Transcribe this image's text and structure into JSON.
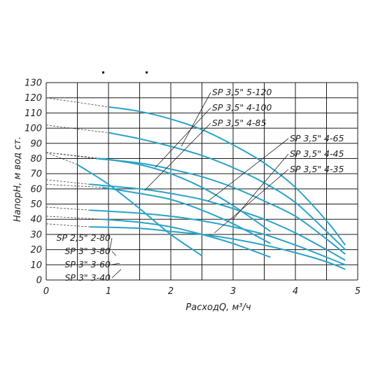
{
  "chart_data": {
    "type": "line",
    "xlabel": "РасходQ, м³/ч",
    "ylabel": "НапорH, м вод ст.",
    "xlim": [
      0,
      5
    ],
    "ylim": [
      0,
      130
    ],
    "xticks": [
      "0",
      "1",
      "2",
      "3",
      "4",
      "5"
    ],
    "yticks": [
      "0",
      "10",
      "20",
      "30",
      "40",
      "50",
      "60",
      "70",
      "80",
      "90",
      "100",
      "110",
      "120",
      "130"
    ],
    "grid": true,
    "series": [
      {
        "name": "SP 3,5\" 5-120",
        "color": "#29a3c8",
        "shutoff": [
          0,
          120
        ],
        "x": [
          1.0,
          1.5,
          2.0,
          2.5,
          3.0,
          3.5,
          4.0,
          4.5,
          4.8
        ],
        "y": [
          114,
          111,
          106,
          99,
          89,
          77,
          61,
          39,
          23
        ],
        "label_anchor": [
          2.17,
          88
        ]
      },
      {
        "name": "SP 3,5\" 4-100",
        "color": "#29a3c8",
        "shutoff": [
          0,
          102
        ],
        "x": [
          1.0,
          1.5,
          2.0,
          2.5,
          3.0,
          3.5,
          4.0,
          4.5,
          4.8
        ],
        "y": [
          97,
          93,
          88,
          82,
          74,
          64,
          51,
          32,
          20
        ],
        "label_anchor": [
          1.75,
          74
        ]
      },
      {
        "name": "SP 3,5\" 4-85",
        "color": "#29a3c8",
        "shutoff": [
          0,
          84
        ],
        "x": [
          0.8,
          1.5,
          2.0,
          2.5,
          3.0,
          3.5,
          4.0,
          4.5,
          4.8
        ],
        "y": [
          80,
          77,
          73,
          68,
          61,
          52,
          42,
          27,
          17
        ],
        "label_anchor": [
          1.58,
          59
        ]
      },
      {
        "name": "SP 3,5\" 4-65",
        "color": "#29a3c8",
        "shutoff": [
          0,
          66
        ],
        "x": [
          0.7,
          1.5,
          2.0,
          2.5,
          3.0,
          3.5,
          4.0,
          4.5,
          4.8
        ],
        "y": [
          63,
          60,
          57,
          53,
          47,
          40,
          31,
          20,
          13
        ],
        "label_anchor": [
          2.6,
          52
        ]
      },
      {
        "name": "SP 3,5\" 4-45",
        "color": "#29a3c8",
        "shutoff": [
          0,
          48
        ],
        "x": [
          0.7,
          1.5,
          2.0,
          2.5,
          3.0,
          3.5,
          4.0,
          4.5,
          4.8
        ],
        "y": [
          46,
          44,
          42,
          39,
          35,
          30,
          23,
          15,
          10
        ],
        "label_anchor": [
          3.0,
          40
        ]
      },
      {
        "name": "SP 3,5\" 4-35",
        "color": "#29a3c8",
        "shutoff": [
          0,
          37
        ],
        "x": [
          0.7,
          1.5,
          2.0,
          2.5,
          3.0,
          3.5,
          4.0,
          4.5,
          4.8
        ],
        "y": [
          35,
          34,
          32,
          30,
          27,
          23,
          18,
          12,
          7
        ],
        "label_anchor": [
          2.7,
          31
        ]
      },
      {
        "name": "SP 2,5\" 2-80",
        "color": "#29a3c8",
        "shutoff": [
          0,
          84
        ],
        "x": [
          0.5,
          1.0,
          1.5,
          2.0,
          2.5
        ],
        "y": [
          76,
          63,
          47,
          30,
          16
        ],
        "label_anchor": [
          1.02,
          20
        ]
      },
      {
        "name": "SP 3\" 3-80",
        "color": "#29a3c8",
        "shutoff": [
          0,
          84
        ],
        "x": [
          0.9,
          1.5,
          2.0,
          2.5,
          3.0,
          3.6
        ],
        "y": [
          80,
          76,
          70,
          61,
          49,
          32
        ],
        "label_anchor": [
          1.12,
          16
        ]
      },
      {
        "name": "SP 3\" 3-60",
        "color": "#29a3c8",
        "shutoff": [
          0,
          63
        ],
        "x": [
          0.9,
          1.5,
          2.0,
          2.5,
          3.0,
          3.6
        ],
        "y": [
          61,
          57,
          53,
          46,
          37,
          24
        ],
        "label_anchor": [
          1.18,
          11
        ]
      },
      {
        "name": "SP 3\" 3-40",
        "color": "#29a3c8",
        "shutoff": [
          0,
          42
        ],
        "x": [
          0.9,
          1.5,
          2.0,
          2.5,
          3.0,
          3.6
        ],
        "y": [
          40,
          38,
          35,
          30,
          24,
          15
        ],
        "label_anchor": [
          1.2,
          7
        ]
      }
    ]
  }
}
